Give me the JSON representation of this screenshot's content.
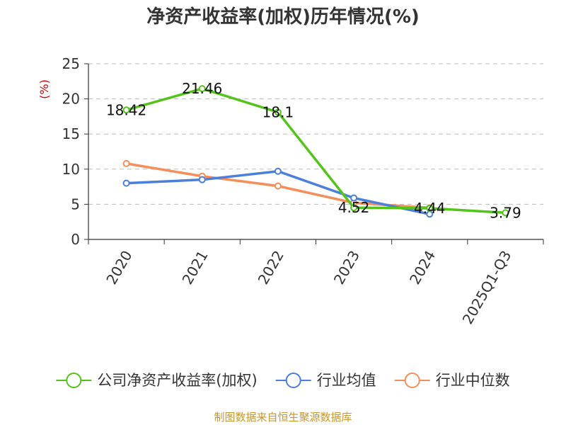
{
  "chart_data": {
    "type": "line",
    "title": "净资产收益率(加权)历年情况(%)",
    "ylabel": "(%)",
    "xlabel": "",
    "ylim": [
      0,
      25
    ],
    "yticks": [
      0,
      5,
      10,
      15,
      20,
      25
    ],
    "categories": [
      "2020",
      "2021",
      "2022",
      "2023",
      "2024",
      "2025Q1-Q3"
    ],
    "grid": true,
    "legend_position": "bottom",
    "series": [
      {
        "name": "公司净资产收益率(加权)",
        "color": "#52c41a",
        "values": [
          18.42,
          21.46,
          18.1,
          4.52,
          4.44,
          3.79
        ],
        "labels": [
          "18.42",
          "21.46",
          "18.1",
          "4.52",
          "4.44",
          "3.79"
        ]
      },
      {
        "name": "行业均值",
        "color": "#4a7fdc",
        "values": [
          8.0,
          8.5,
          9.7,
          5.9,
          3.6,
          null
        ]
      },
      {
        "name": "行业中位数",
        "color": "#f58f5a",
        "values": [
          10.8,
          9.0,
          7.6,
          5.2,
          4.5,
          null
        ]
      }
    ]
  },
  "footer": {
    "source": "制图数据来自恒生聚源数据库",
    "source_color": "#c8962e"
  }
}
